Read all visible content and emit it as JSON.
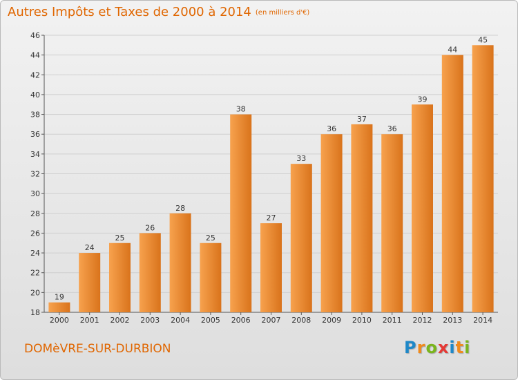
{
  "title": "Autres Impôts et Taxes de 2000 à 2014",
  "subtitle": "(en milliers d'€)",
  "commune": "DOMèVRE-SUR-DURBION",
  "logo": {
    "text": "Proxiti",
    "letters": [
      {
        "ch": "P",
        "color": "#1e88c8"
      },
      {
        "ch": "r",
        "color": "#f08a1c"
      },
      {
        "ch": "o",
        "color": "#7ab51d"
      },
      {
        "ch": "x",
        "color": "#e53935"
      },
      {
        "ch": "i",
        "color": "#1e88c8"
      },
      {
        "ch": "t",
        "color": "#f08a1c"
      },
      {
        "ch": "i",
        "color": "#7ab51d"
      }
    ]
  },
  "colors": {
    "accent": "#e06600",
    "bar_light": "#f7a24e",
    "bar_dark": "#d9731b",
    "grid": "#cfcfcf",
    "axis_text": "#333333"
  },
  "chart_data": {
    "type": "bar",
    "title": "Autres Impôts et Taxes de 2000 à 2014",
    "subtitle": "(en milliers d'€)",
    "categories": [
      "2000",
      "2001",
      "2002",
      "2003",
      "2004",
      "2005",
      "2006",
      "2007",
      "2008",
      "2009",
      "2010",
      "2011",
      "2012",
      "2013",
      "2014"
    ],
    "values": [
      19,
      24,
      25,
      26,
      28,
      25,
      38,
      27,
      33,
      36,
      37,
      36,
      39,
      44,
      45
    ],
    "ylim": [
      18,
      46
    ],
    "yticks": [
      18,
      20,
      22,
      24,
      26,
      28,
      30,
      32,
      34,
      36,
      38,
      40,
      42,
      44,
      46
    ],
    "grid": true,
    "xlabel": "",
    "ylabel": ""
  }
}
